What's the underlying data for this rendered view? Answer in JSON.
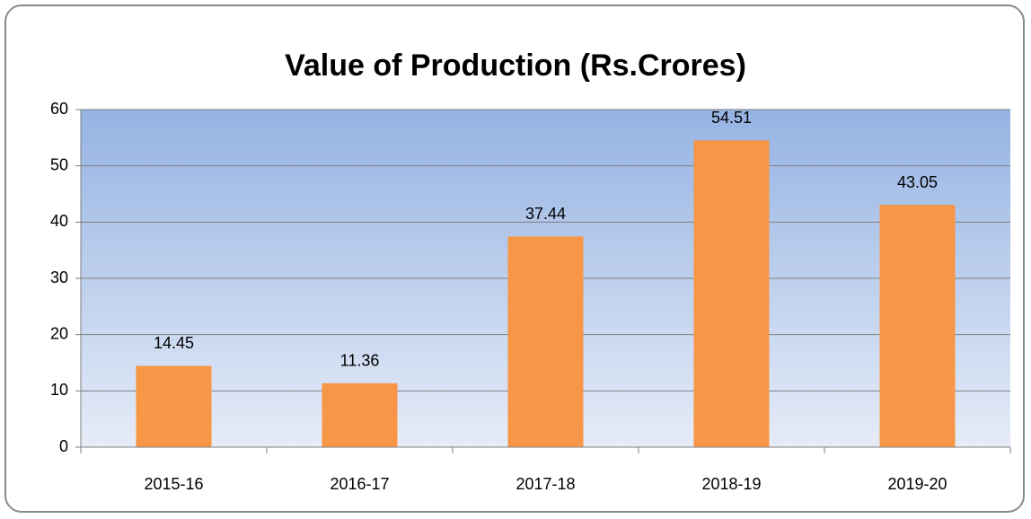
{
  "chart_data": {
    "type": "bar",
    "title": "Value of Production (Rs.Crores)",
    "categories": [
      "2015-16",
      "2016-17",
      "2017-18",
      "2018-19",
      "2019-20"
    ],
    "values": [
      14.45,
      11.36,
      37.44,
      54.51,
      43.05
    ],
    "color": "#f79646",
    "ylim": [
      0,
      60
    ],
    "yticks": [
      0,
      10,
      20,
      30,
      40,
      50,
      60
    ],
    "grid": true
  }
}
